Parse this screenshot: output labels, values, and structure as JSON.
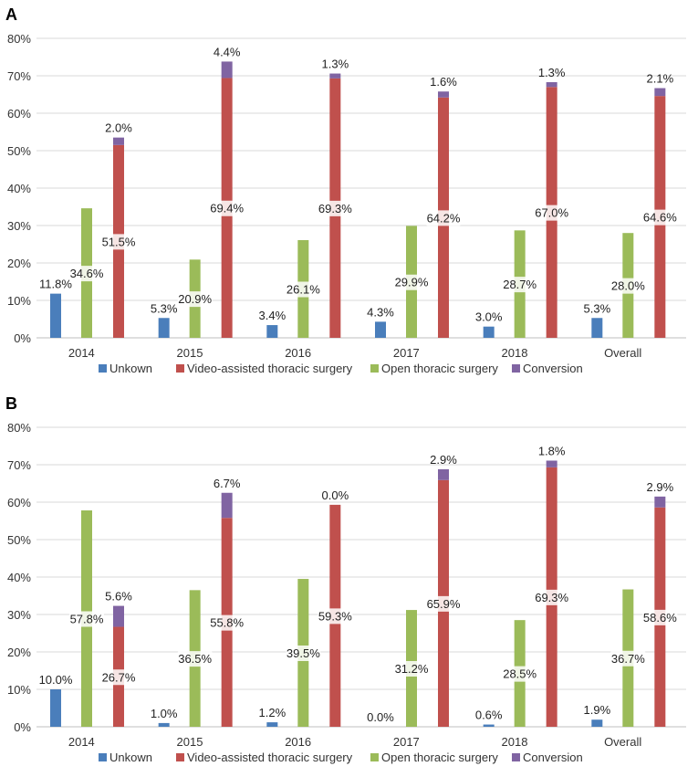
{
  "colors": {
    "unknown": "#4a7ebb",
    "vats": "#c0504d",
    "open": "#9bbb59",
    "conversion": "#8064a2",
    "grid": "#d9d9d9",
    "axis": "#bfbfbf"
  },
  "chart_data": [
    {
      "panel": "A",
      "type": "bar",
      "categories": [
        "2014",
        "2015",
        "2016",
        "2017",
        "2018",
        "Overall"
      ],
      "ylim": [
        0,
        80
      ],
      "yticks": [
        "0%",
        "10%",
        "20%",
        "30%",
        "40%",
        "50%",
        "60%",
        "70%",
        "80%"
      ],
      "series": [
        {
          "name": "Unkown",
          "values": [
            11.8,
            5.3,
            3.4,
            4.3,
            3.0,
            5.3
          ],
          "labels": [
            "11.8%",
            "5.3%",
            "3.4%",
            "4.3%",
            "3.0%",
            "5.3%"
          ]
        },
        {
          "name": "Video-assisted thoracic surgery",
          "values": [
            51.5,
            69.4,
            69.3,
            64.2,
            67.0,
            64.6
          ],
          "labels": [
            "51.5%",
            "69.4%",
            "69.3%",
            "64.2%",
            "67.0%",
            "64.6%"
          ]
        },
        {
          "name": "Open thoracic surgery",
          "values": [
            34.6,
            20.9,
            26.1,
            29.9,
            28.7,
            28.0
          ],
          "labels": [
            "34.6%",
            "20.9%",
            "26.1%",
            "29.9%",
            "28.7%",
            "28.0%"
          ]
        },
        {
          "name": "Conversion",
          "values": [
            2.0,
            4.4,
            1.3,
            1.6,
            1.3,
            2.1
          ],
          "labels": [
            "2.0%",
            "4.4%",
            "1.3%",
            "1.6%",
            "1.3%",
            "2.1%"
          ]
        }
      ]
    },
    {
      "panel": "B",
      "type": "bar",
      "categories": [
        "2014",
        "2015",
        "2016",
        "2017",
        "2018",
        "Overall"
      ],
      "ylim": [
        0,
        80
      ],
      "yticks": [
        "0%",
        "10%",
        "20%",
        "30%",
        "40%",
        "50%",
        "60%",
        "70%",
        "80%"
      ],
      "series": [
        {
          "name": "Unkown",
          "values": [
            10.0,
            1.0,
            1.2,
            0.0,
            0.6,
            1.9
          ],
          "labels": [
            "10.0%",
            "1.0%",
            "1.2%",
            "0.0%",
            "0.6%",
            "1.9%"
          ]
        },
        {
          "name": "Video-assisted thoracic surgery",
          "values": [
            26.7,
            55.8,
            59.3,
            65.9,
            69.3,
            58.6
          ],
          "labels": [
            "26.7%",
            "55.8%",
            "59.3%",
            "65.9%",
            "69.3%",
            "58.6%"
          ]
        },
        {
          "name": "Open thoracic surgery",
          "values": [
            57.8,
            36.5,
            39.5,
            31.2,
            28.5,
            36.7
          ],
          "labels": [
            "57.8%",
            "36.5%",
            "39.5%",
            "31.2%",
            "28.5%",
            "36.7%"
          ]
        },
        {
          "name": "Conversion",
          "values": [
            5.6,
            6.7,
            0.0,
            2.9,
            1.8,
            2.9
          ],
          "labels": [
            "5.6%",
            "6.7%",
            "0.0%",
            "2.9%",
            "1.8%",
            "2.9%"
          ]
        }
      ]
    }
  ]
}
